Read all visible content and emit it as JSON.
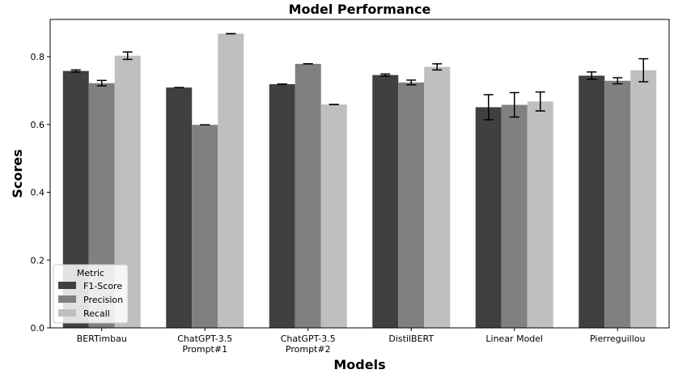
{
  "chart_data": {
    "type": "bar",
    "title": "Model Performance",
    "xlabel": "Models",
    "ylabel": "Scores",
    "ylim": [
      0,
      0.91
    ],
    "yticks": [
      "0.0",
      "0.2",
      "0.4",
      "0.6",
      "0.8"
    ],
    "grid": false,
    "legend_position": "bottom-left",
    "legend_title": "Metric",
    "categories": [
      "BERTimbau",
      "ChatGPT-3.5\nPrompt#1",
      "ChatGPT-3.5\nPrompt#2",
      "DistilBERT",
      "Linear Model",
      "Pierreguillou"
    ],
    "series": [
      {
        "name": "F1-Score",
        "color": "#404040",
        "values": [
          0.758,
          0.709,
          0.719,
          0.746,
          0.651,
          0.744
        ],
        "errors": [
          0.003,
          0.0,
          0.0,
          0.003,
          0.037,
          0.011
        ]
      },
      {
        "name": "Precision",
        "color": "#808080",
        "values": [
          0.722,
          0.599,
          0.779,
          0.724,
          0.658,
          0.729
        ],
        "errors": [
          0.008,
          0.0,
          0.0,
          0.007,
          0.036,
          0.009
        ]
      },
      {
        "name": "Recall",
        "color": "#bfbfbf",
        "values": [
          0.803,
          0.868,
          0.659,
          0.77,
          0.668,
          0.76
        ],
        "errors": [
          0.011,
          0.0,
          0.0,
          0.009,
          0.028,
          0.034
        ]
      }
    ]
  }
}
